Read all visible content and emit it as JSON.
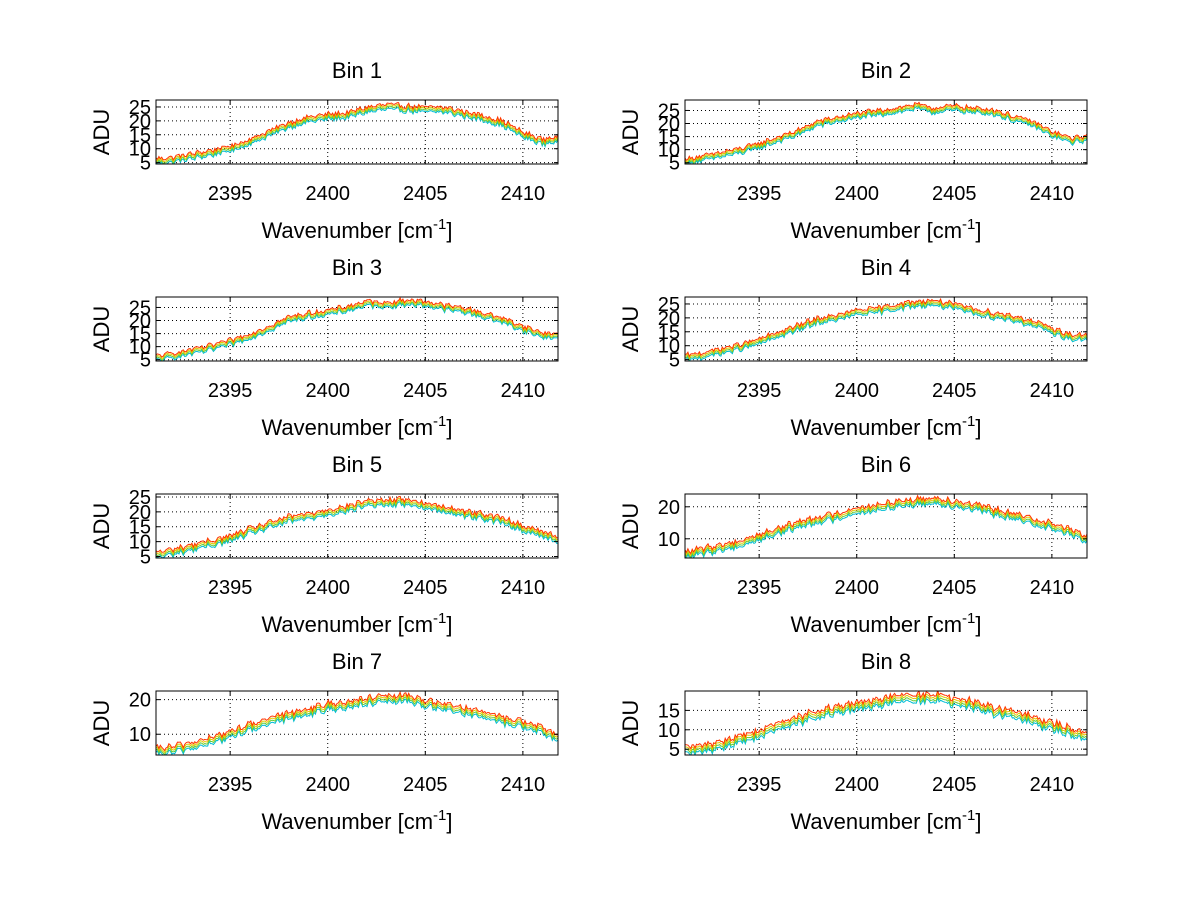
{
  "figure": {
    "background": "#ffffff",
    "grid_color": "#000000",
    "series_colors": [
      "#00bcd4",
      "#66cc33",
      "#e6c800",
      "#ff3300"
    ]
  },
  "chart_data": [
    {
      "type": "line",
      "title": "Bin 1",
      "xlabel": "Wavenumber [cm",
      "xlabel_sup": "-1",
      "xlabel_end": "]",
      "ylabel": "ADU",
      "xlim": [
        2391.2,
        2411.8
      ],
      "ylim": [
        4.5,
        27.5
      ],
      "xticks": [
        2395,
        2400,
        2405,
        2410
      ],
      "yticks": [
        5,
        10,
        15,
        20,
        25
      ],
      "grid": true,
      "profile": [
        [
          2391.2,
          5.5
        ],
        [
          2392,
          6
        ],
        [
          2394,
          8.5
        ],
        [
          2395,
          10
        ],
        [
          2396,
          12.5
        ],
        [
          2398,
          18.5
        ],
        [
          2399,
          20.5
        ],
        [
          2400,
          21.5
        ],
        [
          2401,
          22
        ],
        [
          2402,
          24
        ],
        [
          2403,
          25
        ],
        [
          2404,
          24.5
        ],
        [
          2405,
          24
        ],
        [
          2406,
          24
        ],
        [
          2407,
          22.5
        ],
        [
          2408,
          21
        ],
        [
          2409,
          19
        ],
        [
          2410,
          15
        ],
        [
          2411,
          12.5
        ],
        [
          2411.8,
          13.5
        ]
      ]
    },
    {
      "type": "line",
      "title": "Bin 2",
      "xlabel": "Wavenumber [cm",
      "xlabel_sup": "-1",
      "xlabel_end": "]",
      "ylabel": "ADU",
      "xlim": [
        2391.2,
        2411.8
      ],
      "ylim": [
        4.5,
        29
      ],
      "xticks": [
        2395,
        2400,
        2405,
        2410
      ],
      "yticks": [
        5,
        10,
        15,
        20,
        25
      ],
      "grid": true,
      "profile": [
        [
          2391.2,
          5.5
        ],
        [
          2392,
          6.5
        ],
        [
          2394,
          9.5
        ],
        [
          2395,
          11.5
        ],
        [
          2396,
          14
        ],
        [
          2397,
          16.5
        ],
        [
          2398,
          20
        ],
        [
          2399,
          21.5
        ],
        [
          2400,
          23
        ],
        [
          2401,
          24
        ],
        [
          2402,
          25
        ],
        [
          2403,
          26.5
        ],
        [
          2404,
          25
        ],
        [
          2405,
          26
        ],
        [
          2406,
          25
        ],
        [
          2407,
          24.5
        ],
        [
          2408,
          22
        ],
        [
          2409,
          20
        ],
        [
          2410,
          16
        ],
        [
          2411,
          13.5
        ],
        [
          2411.8,
          14.5
        ]
      ]
    },
    {
      "type": "line",
      "title": "Bin 3",
      "xlabel": "Wavenumber [cm",
      "xlabel_sup": "-1",
      "xlabel_end": "]",
      "ylabel": "ADU",
      "xlim": [
        2391.2,
        2411.8
      ],
      "ylim": [
        4.5,
        29
      ],
      "xticks": [
        2395,
        2400,
        2405,
        2410
      ],
      "yticks": [
        5,
        10,
        15,
        20,
        25
      ],
      "grid": true,
      "profile": [
        [
          2391.2,
          5.5
        ],
        [
          2392,
          6.5
        ],
        [
          2394,
          9.5
        ],
        [
          2395,
          11.5
        ],
        [
          2396,
          14
        ],
        [
          2397,
          17
        ],
        [
          2398,
          20.5
        ],
        [
          2399,
          22
        ],
        [
          2400,
          23
        ],
        [
          2401,
          24.5
        ],
        [
          2402,
          26.5
        ],
        [
          2403,
          26
        ],
        [
          2404,
          27
        ],
        [
          2405,
          26.5
        ],
        [
          2406,
          25
        ],
        [
          2407,
          24
        ],
        [
          2408,
          22
        ],
        [
          2409,
          20
        ],
        [
          2410,
          17
        ],
        [
          2411,
          14.5
        ],
        [
          2411.8,
          14
        ]
      ]
    },
    {
      "type": "line",
      "title": "Bin 4",
      "xlabel": "Wavenumber [cm",
      "xlabel_sup": "-1",
      "xlabel_end": "]",
      "ylabel": "ADU",
      "xlim": [
        2391.2,
        2411.8
      ],
      "ylim": [
        4.5,
        27.5
      ],
      "xticks": [
        2395,
        2400,
        2405,
        2410
      ],
      "yticks": [
        5,
        10,
        15,
        20,
        25
      ],
      "grid": true,
      "profile": [
        [
          2391.2,
          5.5
        ],
        [
          2392,
          6.5
        ],
        [
          2394,
          9.5
        ],
        [
          2395,
          11.5
        ],
        [
          2396,
          14
        ],
        [
          2397,
          16.5
        ],
        [
          2398,
          19
        ],
        [
          2399,
          20
        ],
        [
          2400,
          22
        ],
        [
          2401,
          22.5
        ],
        [
          2402,
          24
        ],
        [
          2403,
          25
        ],
        [
          2404,
          25.5
        ],
        [
          2405,
          24
        ],
        [
          2406,
          22.5
        ],
        [
          2407,
          21
        ],
        [
          2408,
          20
        ],
        [
          2409,
          18
        ],
        [
          2410,
          15.5
        ],
        [
          2411,
          13
        ],
        [
          2411.8,
          13
        ]
      ]
    },
    {
      "type": "line",
      "title": "Bin 5",
      "xlabel": "Wavenumber [cm",
      "xlabel_sup": "-1",
      "xlabel_end": "]",
      "ylabel": "ADU",
      "xlim": [
        2391.2,
        2411.8
      ],
      "ylim": [
        4.5,
        26
      ],
      "xticks": [
        2395,
        2400,
        2405,
        2410
      ],
      "yticks": [
        5,
        10,
        15,
        20,
        25
      ],
      "grid": true,
      "profile": [
        [
          2391.2,
          5.5
        ],
        [
          2392,
          6.5
        ],
        [
          2394,
          9.5
        ],
        [
          2395,
          11
        ],
        [
          2396,
          13.5
        ],
        [
          2397,
          15.5
        ],
        [
          2398,
          17.5
        ],
        [
          2399,
          18.5
        ],
        [
          2400,
          20
        ],
        [
          2401,
          21
        ],
        [
          2402,
          23
        ],
        [
          2403,
          23
        ],
        [
          2404,
          23.5
        ],
        [
          2405,
          22
        ],
        [
          2406,
          21
        ],
        [
          2407,
          19.5
        ],
        [
          2408,
          18.5
        ],
        [
          2409,
          17
        ],
        [
          2410,
          14.5
        ],
        [
          2411,
          12.5
        ],
        [
          2411.8,
          11
        ]
      ]
    },
    {
      "type": "line",
      "title": "Bin 6",
      "xlabel": "Wavenumber [cm",
      "xlabel_sup": "-1",
      "xlabel_end": "]",
      "ylabel": "ADU",
      "xlim": [
        2391.2,
        2411.8
      ],
      "ylim": [
        4,
        24
      ],
      "xticks": [
        2395,
        2400,
        2405,
        2410
      ],
      "yticks": [
        10,
        20
      ],
      "grid": true,
      "profile": [
        [
          2391.2,
          5
        ],
        [
          2392,
          6
        ],
        [
          2394,
          8.5
        ],
        [
          2395,
          10.5
        ],
        [
          2396,
          12.5
        ],
        [
          2397,
          14.5
        ],
        [
          2398,
          16
        ],
        [
          2399,
          17
        ],
        [
          2400,
          19
        ],
        [
          2401,
          19.5
        ],
        [
          2402,
          21
        ],
        [
          2403,
          21.5
        ],
        [
          2404,
          22
        ],
        [
          2405,
          21
        ],
        [
          2406,
          20
        ],
        [
          2407,
          18.5
        ],
        [
          2408,
          17
        ],
        [
          2409,
          15.5
        ],
        [
          2410,
          14
        ],
        [
          2411,
          12
        ],
        [
          2411.8,
          10
        ]
      ]
    },
    {
      "type": "line",
      "title": "Bin 7",
      "xlabel": "Wavenumber [cm",
      "xlabel_sup": "-1",
      "xlabel_end": "]",
      "ylabel": "ADU",
      "xlim": [
        2391.2,
        2411.8
      ],
      "ylim": [
        4,
        22.5
      ],
      "xticks": [
        2395,
        2400,
        2405,
        2410
      ],
      "yticks": [
        10,
        20
      ],
      "grid": true,
      "profile": [
        [
          2391.2,
          5
        ],
        [
          2392,
          5.5
        ],
        [
          2394,
          8
        ],
        [
          2395,
          10
        ],
        [
          2396,
          12
        ],
        [
          2397,
          13.5
        ],
        [
          2398,
          15.5
        ],
        [
          2399,
          16.5
        ],
        [
          2400,
          18
        ],
        [
          2401,
          18.5
        ],
        [
          2402,
          19.5
        ],
        [
          2403,
          20
        ],
        [
          2404,
          20.5
        ],
        [
          2405,
          19
        ],
        [
          2406,
          18
        ],
        [
          2407,
          17
        ],
        [
          2408,
          15.5
        ],
        [
          2409,
          14
        ],
        [
          2410,
          13
        ],
        [
          2411,
          11
        ],
        [
          2411.8,
          9
        ]
      ]
    },
    {
      "type": "line",
      "title": "Bin 8",
      "xlabel": "Wavenumber [cm",
      "xlabel_sup": "-1",
      "xlabel_end": "]",
      "ylabel": "ADU",
      "xlim": [
        2391.2,
        2411.8
      ],
      "ylim": [
        3.5,
        20
      ],
      "xticks": [
        2395,
        2400,
        2405,
        2410
      ],
      "yticks": [
        5,
        10,
        15
      ],
      "grid": true,
      "profile": [
        [
          2391.2,
          4.5
        ],
        [
          2392,
          5
        ],
        [
          2394,
          7.5
        ],
        [
          2395,
          9
        ],
        [
          2396,
          11
        ],
        [
          2397,
          12.5
        ],
        [
          2398,
          14
        ],
        [
          2399,
          15
        ],
        [
          2400,
          16
        ],
        [
          2401,
          17
        ],
        [
          2402,
          18
        ],
        [
          2403,
          18
        ],
        [
          2404,
          18.5
        ],
        [
          2405,
          17
        ],
        [
          2406,
          16.5
        ],
        [
          2407,
          15
        ],
        [
          2408,
          14
        ],
        [
          2409,
          12.5
        ],
        [
          2410,
          11
        ],
        [
          2411,
          9.5
        ],
        [
          2411.8,
          8.5
        ]
      ]
    }
  ]
}
